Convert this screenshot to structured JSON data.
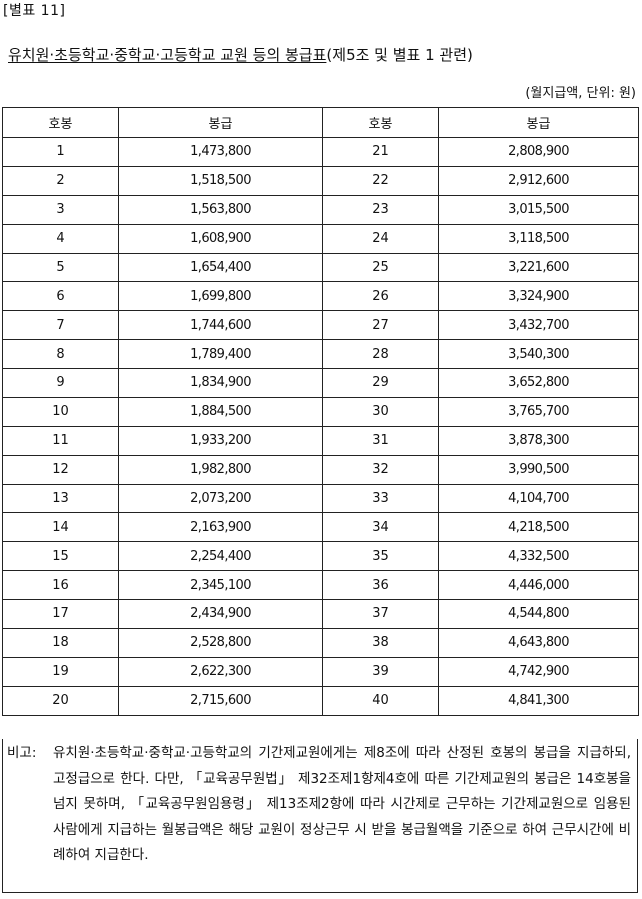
{
  "annex_label": "[별표 11]",
  "title": {
    "main": "유치원·초등학교·중학교·고등학교 교원 등의 봉급표",
    "suffix": "(제5조 및 별표 1 관련)"
  },
  "unit_note": "(월지급액, 단위: 원)",
  "table": {
    "headers": [
      "호봉",
      "봉급",
      "호봉",
      "봉급"
    ],
    "rows": [
      {
        "g1": "1",
        "p1": "1,473,800",
        "g2": "21",
        "p2": "2,808,900"
      },
      {
        "g1": "2",
        "p1": "1,518,500",
        "g2": "22",
        "p2": "2,912,600"
      },
      {
        "g1": "3",
        "p1": "1,563,800",
        "g2": "23",
        "p2": "3,015,500"
      },
      {
        "g1": "4",
        "p1": "1,608,900",
        "g2": "24",
        "p2": "3,118,500"
      },
      {
        "g1": "5",
        "p1": "1,654,400",
        "g2": "25",
        "p2": "3,221,600"
      },
      {
        "g1": "6",
        "p1": "1,699,800",
        "g2": "26",
        "p2": "3,324,900"
      },
      {
        "g1": "7",
        "p1": "1,744,600",
        "g2": "27",
        "p2": "3,432,700"
      },
      {
        "g1": "8",
        "p1": "1,789,400",
        "g2": "28",
        "p2": "3,540,300"
      },
      {
        "g1": "9",
        "p1": "1,834,900",
        "g2": "29",
        "p2": "3,652,800"
      },
      {
        "g1": "10",
        "p1": "1,884,500",
        "g2": "30",
        "p2": "3,765,700"
      },
      {
        "g1": "11",
        "p1": "1,933,200",
        "g2": "31",
        "p2": "3,878,300"
      },
      {
        "g1": "12",
        "p1": "1,982,800",
        "g2": "32",
        "p2": "3,990,500"
      },
      {
        "g1": "13",
        "p1": "2,073,200",
        "g2": "33",
        "p2": "4,104,700"
      },
      {
        "g1": "14",
        "p1": "2,163,900",
        "g2": "34",
        "p2": "4,218,500"
      },
      {
        "g1": "15",
        "p1": "2,254,400",
        "g2": "35",
        "p2": "4,332,500"
      },
      {
        "g1": "16",
        "p1": "2,345,100",
        "g2": "36",
        "p2": "4,446,000"
      },
      {
        "g1": "17",
        "p1": "2,434,900",
        "g2": "37",
        "p2": "4,544,800"
      },
      {
        "g1": "18",
        "p1": "2,528,800",
        "g2": "38",
        "p2": "4,643,800"
      },
      {
        "g1": "19",
        "p1": "2,622,300",
        "g2": "39",
        "p2": "4,742,900"
      },
      {
        "g1": "20",
        "p1": "2,715,600",
        "g2": "40",
        "p2": "4,841,300"
      }
    ]
  },
  "remarks": {
    "label": "비고:",
    "text": "유치원·초등학교·중학교·고등학교의 기간제교원에게는 제8조에 따라 산정된 호봉의 봉급을 지급하되, 고정급으로 한다. 다만, 「교육공무원법」 제32조제1항제4호에 따른 기간제교원의 봉급은 14호봉을 넘지 못하며, 「교육공무원임용령」 제13조제2항에 따라 시간제로 근무하는 기간제교원으로 임용된 사람에게 지급하는 월봉급액은 해당 교원이 정상근무 시 받을 봉급월액을 기준으로 하여 근무시간에 비례하여 지급한다."
  }
}
